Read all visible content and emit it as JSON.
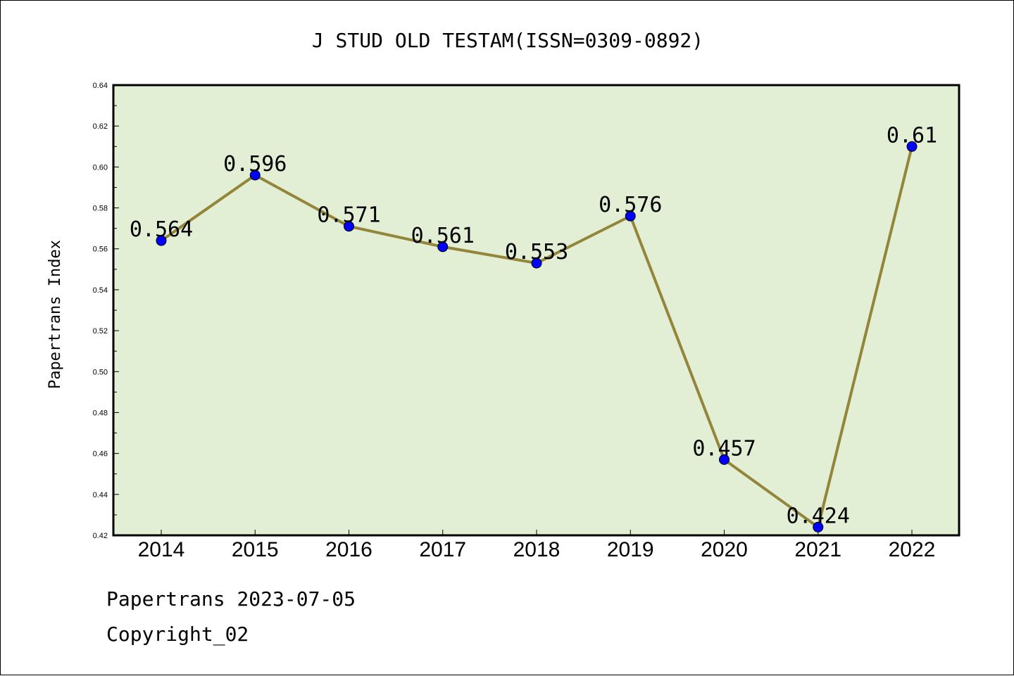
{
  "chart_data": {
    "type": "line",
    "title": "J STUD OLD TESTAM(ISSN=0309-0892)",
    "ylabel": "Papertrans Index",
    "xlabel": "",
    "categories": [
      "2014",
      "2015",
      "2016",
      "2017",
      "2018",
      "2019",
      "2020",
      "2021",
      "2022"
    ],
    "series": [
      {
        "values": [
          0.564,
          0.596,
          0.571,
          0.561,
          0.553,
          0.576,
          0.457,
          0.424,
          0.61
        ],
        "value_labels": [
          "0.564",
          "0.596",
          "0.571",
          "0.561",
          "0.553",
          "0.576",
          "0.457",
          "0.424",
          "0.61"
        ]
      }
    ],
    "ylim": [
      0.42,
      0.64
    ],
    "yticks": [
      "0.42",
      "0.44",
      "0.46",
      "0.48",
      "0.50",
      "0.52",
      "0.54",
      "0.56",
      "0.58",
      "0.60",
      "0.62",
      "0.64"
    ],
    "grid": false,
    "colors": {
      "plot_background": "#e2efd5",
      "line": "#938539",
      "marker": "#0000ff"
    }
  },
  "footer": {
    "line1": "Papertrans 2023-07-05",
    "line2": "Copyright_02"
  }
}
